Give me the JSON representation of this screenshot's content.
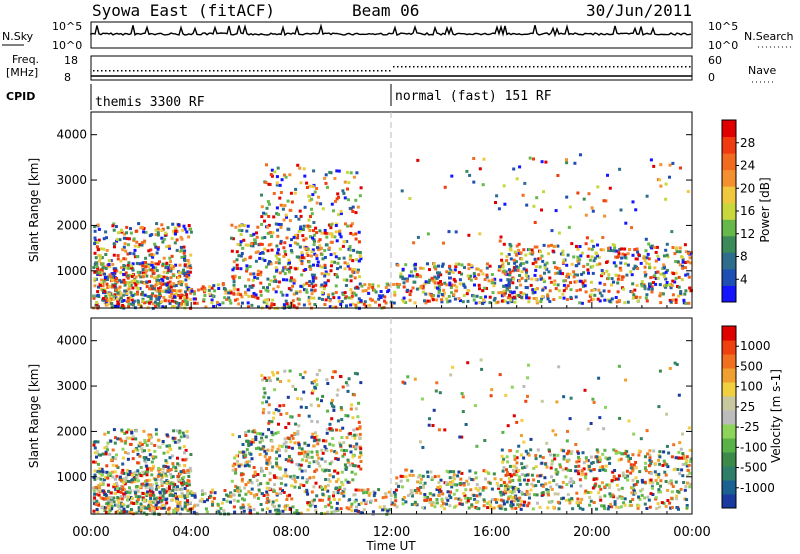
{
  "header": {
    "site": "Syowa East (fitACF)",
    "beam": "Beam 06",
    "date": "30/Jun/2011"
  },
  "noise_panel": {
    "left_label": "N.Sky",
    "right_label": "N.Search",
    "ticks": [
      "10^5",
      "10^0"
    ]
  },
  "freq_panel": {
    "left_label_1": "Freq.",
    "left_label_2": "[MHz]",
    "left_ticks": [
      "18",
      "8"
    ],
    "right_label": "Nave",
    "right_ticks": [
      "60",
      "0"
    ]
  },
  "cpid": {
    "label": "CPID",
    "modes": [
      "themis 3300 RF",
      "normal (fast) 151 RF"
    ]
  },
  "chart_data": [
    {
      "type": "heatmap",
      "name": "power",
      "ylabel": "Slant Range [km]",
      "y_ticks": [
        "1000",
        "2000",
        "3000",
        "4000"
      ],
      "ylim": [
        180,
        4500
      ],
      "colorbar_label": "Power [dB]",
      "colorbar_ticks": [
        "4",
        "8",
        "12",
        "16",
        "20",
        "24",
        "28"
      ],
      "colorbar_colors": [
        "#1414ff",
        "#1f4fb4",
        "#2e6e8c",
        "#3a8a5a",
        "#66b84a",
        "#c8d83c",
        "#f0c840",
        "#f59030",
        "#f06a20",
        "#f03a10",
        "#e00000"
      ],
      "x_ticks": [
        "00:00",
        "04:00",
        "08:00",
        "12:00",
        "16:00",
        "20:00",
        "00:00"
      ]
    },
    {
      "type": "heatmap",
      "name": "velocity",
      "ylabel": "Slant Range [km]",
      "y_ticks": [
        "1000",
        "2000",
        "3000",
        "4000"
      ],
      "ylim": [
        180,
        4500
      ],
      "colorbar_label": "Velocity [m s-1]",
      "colorbar_ticks": [
        "1000",
        "500",
        "100",
        "25",
        "-25",
        "-100",
        "-500",
        "-1000"
      ],
      "colorbar_colors": [
        "#1a3aa0",
        "#1a6090",
        "#2e7e6a",
        "#3c8a4a",
        "#58b248",
        "#8ed45a",
        "#bcbcbc",
        "#c8c8a0",
        "#f0d040",
        "#f0a030",
        "#f07020",
        "#f04010",
        "#e00000"
      ],
      "xlabel": "Time UT",
      "x_ticks": [
        "00:00",
        "04:00",
        "08:00",
        "12:00",
        "16:00",
        "20:00",
        "00:00"
      ]
    }
  ]
}
